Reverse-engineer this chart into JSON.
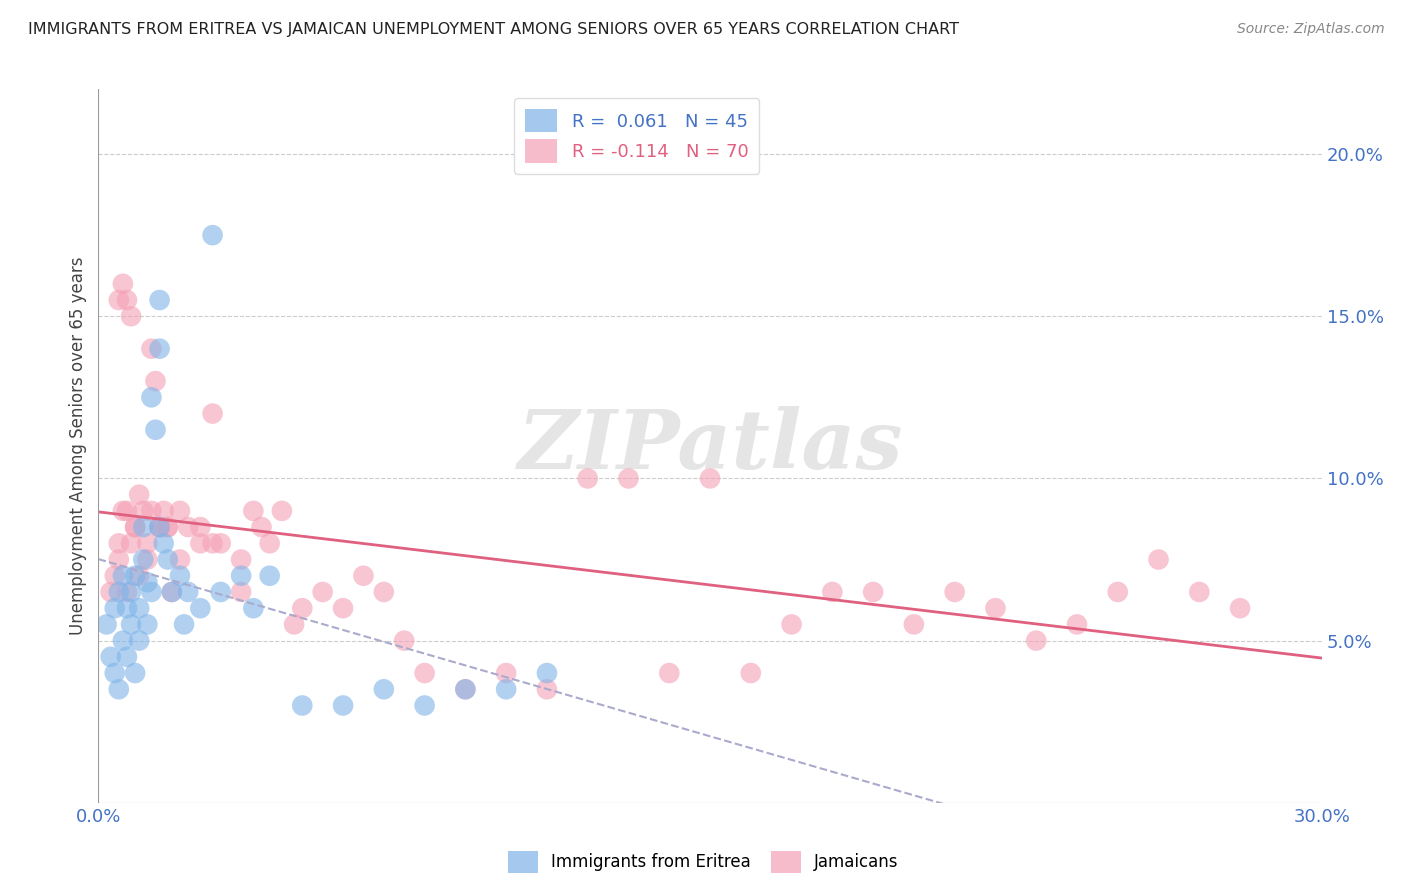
{
  "title": "IMMIGRANTS FROM ERITREA VS JAMAICAN UNEMPLOYMENT AMONG SENIORS OVER 65 YEARS CORRELATION CHART",
  "source": "Source: ZipAtlas.com",
  "ylabel": "Unemployment Among Seniors over 65 years",
  "xlim": [
    0.0,
    0.3
  ],
  "ylim": [
    0.0,
    0.22
  ],
  "xticks": [
    0.0,
    0.03,
    0.06,
    0.09,
    0.12,
    0.15,
    0.18,
    0.21,
    0.24,
    0.27,
    0.3
  ],
  "ytick_positions": [
    0.0,
    0.05,
    0.1,
    0.15,
    0.2
  ],
  "ytick_labels": [
    "",
    "5.0%",
    "10.0%",
    "15.0%",
    "20.0%"
  ],
  "grid_color": "#cccccc",
  "background_color": "#ffffff",
  "legend_r1": "R =  0.061   N = 45",
  "legend_r2": "R = -0.114   N = 70",
  "blue_color": "#7fb3e8",
  "pink_color": "#f4a0b5",
  "blue_line_color": "#4472c4",
  "pink_line_color": "#e06080",
  "blue_trend_style": "--",
  "blue_x": [
    0.002,
    0.003,
    0.004,
    0.004,
    0.005,
    0.005,
    0.006,
    0.006,
    0.007,
    0.007,
    0.008,
    0.008,
    0.009,
    0.009,
    0.01,
    0.01,
    0.011,
    0.011,
    0.012,
    0.012,
    0.013,
    0.013,
    0.014,
    0.015,
    0.015,
    0.016,
    0.017,
    0.018,
    0.02,
    0.021,
    0.022,
    0.025,
    0.028,
    0.03,
    0.035,
    0.038,
    0.042,
    0.05,
    0.06,
    0.07,
    0.08,
    0.09,
    0.1,
    0.11,
    0.015
  ],
  "blue_y": [
    0.055,
    0.045,
    0.04,
    0.06,
    0.035,
    0.065,
    0.05,
    0.07,
    0.045,
    0.06,
    0.055,
    0.065,
    0.04,
    0.07,
    0.05,
    0.06,
    0.075,
    0.085,
    0.055,
    0.068,
    0.065,
    0.125,
    0.115,
    0.14,
    0.155,
    0.08,
    0.075,
    0.065,
    0.07,
    0.055,
    0.065,
    0.06,
    0.175,
    0.065,
    0.07,
    0.06,
    0.07,
    0.03,
    0.03,
    0.035,
    0.03,
    0.035,
    0.035,
    0.04,
    0.085
  ],
  "pink_x": [
    0.003,
    0.004,
    0.005,
    0.005,
    0.006,
    0.007,
    0.007,
    0.008,
    0.009,
    0.01,
    0.011,
    0.012,
    0.013,
    0.014,
    0.015,
    0.016,
    0.017,
    0.018,
    0.02,
    0.022,
    0.025,
    0.028,
    0.03,
    0.035,
    0.038,
    0.042,
    0.048,
    0.055,
    0.06,
    0.065,
    0.07,
    0.075,
    0.08,
    0.09,
    0.1,
    0.11,
    0.12,
    0.13,
    0.14,
    0.15,
    0.16,
    0.17,
    0.18,
    0.19,
    0.2,
    0.21,
    0.22,
    0.23,
    0.24,
    0.25,
    0.26,
    0.27,
    0.28,
    0.005,
    0.006,
    0.007,
    0.008,
    0.009,
    0.01,
    0.012,
    0.013,
    0.015,
    0.017,
    0.02,
    0.025,
    0.028,
    0.035,
    0.04,
    0.045,
    0.05
  ],
  "pink_y": [
    0.065,
    0.07,
    0.08,
    0.075,
    0.09,
    0.065,
    0.09,
    0.08,
    0.085,
    0.07,
    0.09,
    0.075,
    0.14,
    0.13,
    0.085,
    0.09,
    0.085,
    0.065,
    0.09,
    0.085,
    0.08,
    0.12,
    0.08,
    0.065,
    0.09,
    0.08,
    0.055,
    0.065,
    0.06,
    0.07,
    0.065,
    0.05,
    0.04,
    0.035,
    0.04,
    0.035,
    0.1,
    0.1,
    0.04,
    0.1,
    0.04,
    0.055,
    0.065,
    0.065,
    0.055,
    0.065,
    0.06,
    0.05,
    0.055,
    0.065,
    0.075,
    0.065,
    0.06,
    0.155,
    0.16,
    0.155,
    0.15,
    0.085,
    0.095,
    0.08,
    0.09,
    0.085,
    0.085,
    0.075,
    0.085,
    0.08,
    0.075,
    0.085,
    0.09,
    0.06
  ]
}
